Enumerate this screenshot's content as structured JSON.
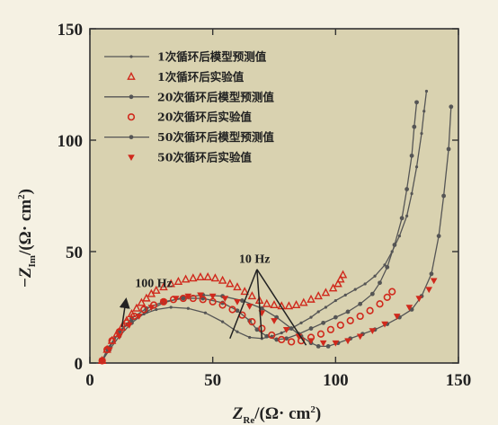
{
  "chart_data": {
    "type": "scatter",
    "xlabel": "Z_Re/(Ω· cm²)",
    "ylabel": "−Z_Im/(Ω· cm²)",
    "xlim": [
      0,
      150
    ],
    "ylim": [
      0,
      150
    ],
    "xticks": [
      0,
      50,
      100,
      150
    ],
    "yticks": [
      0,
      50,
      100,
      150
    ],
    "legend_position": "top-left",
    "colors": {
      "background": "#f5f1e3",
      "plot_area": "#d9d2b0",
      "model_line": "#555555",
      "experimental": "#d0291c"
    },
    "annotations": [
      {
        "text": "100 Hz"
      },
      {
        "text": "10 Hz"
      }
    ],
    "series": [
      {
        "name": "1次循环后模型预测值",
        "kind": "model",
        "marker": "dot-small",
        "x": [
          5,
          7,
          10,
          13,
          17,
          22,
          27,
          33,
          40,
          47,
          54,
          60,
          65,
          70,
          74,
          78,
          82,
          86,
          90,
          93,
          96,
          100,
          104,
          108,
          112,
          116,
          120,
          123,
          126,
          129,
          131,
          133,
          135,
          136,
          137
        ],
        "y": [
          1,
          6,
          11,
          15,
          19,
          22,
          24,
          25,
          24.5,
          22.5,
          18.5,
          14,
          11.5,
          11,
          12,
          13.5,
          15.5,
          18,
          20.5,
          23,
          25,
          28,
          30.5,
          33,
          35.5,
          39,
          44,
          50,
          57,
          66,
          76,
          88,
          103,
          113,
          122
        ]
      },
      {
        "name": "1次循环后实验值",
        "kind": "experimental",
        "marker": "triangle-up",
        "x": [
          5,
          7,
          9,
          11,
          13,
          15,
          17,
          19,
          21,
          23,
          25,
          27,
          30,
          33,
          36,
          39,
          42,
          45,
          48,
          51,
          54,
          57,
          60,
          63,
          66,
          69,
          72,
          75,
          78,
          81,
          84,
          87,
          90,
          93,
          96,
          99,
          101,
          102,
          103
        ],
        "y": [
          1,
          6,
          10,
          13,
          16,
          19,
          22,
          24.5,
          27,
          29,
          31,
          32.5,
          34,
          35.5,
          36.5,
          37.5,
          38,
          38.5,
          38.5,
          38,
          37,
          35.5,
          34,
          32,
          30,
          28,
          26.5,
          26,
          25.5,
          25.5,
          26,
          27,
          28.5,
          30,
          31.5,
          33.5,
          35.5,
          37.5,
          39.5
        ]
      },
      {
        "name": "20次循环后模型预测值",
        "kind": "model",
        "marker": "dot",
        "x": [
          5,
          8,
          12,
          17,
          23,
          30,
          38,
          46,
          54,
          60,
          65,
          68,
          72,
          76,
          80,
          85,
          90,
          95,
          100,
          105,
          110,
          115,
          118,
          121,
          124,
          127,
          129,
          131,
          132,
          133
        ],
        "y": [
          1,
          7,
          14,
          20,
          24.5,
          27.5,
          29,
          29,
          27,
          23.5,
          19,
          15,
          12,
          10.5,
          11,
          13,
          15.5,
          18,
          20.5,
          23,
          26.5,
          31,
          36,
          43,
          53,
          65,
          78,
          93,
          106,
          117
        ]
      },
      {
        "name": "20次循环后实验值",
        "kind": "experimental",
        "marker": "circle-open",
        "x": [
          5,
          7,
          9,
          12,
          15,
          18,
          22,
          26,
          30,
          34,
          38,
          42,
          46,
          50,
          54,
          58,
          62,
          66,
          70,
          74,
          78,
          82,
          86,
          90,
          94,
          98,
          102,
          106,
          110,
          114,
          118,
          121,
          123
        ],
        "y": [
          1,
          6,
          10,
          14,
          18,
          21,
          24,
          26,
          27.5,
          28.5,
          29,
          29,
          28.5,
          27.5,
          26,
          24,
          21.5,
          18.5,
          15.5,
          12.5,
          10.5,
          9.5,
          10,
          11.5,
          13,
          15,
          17,
          19,
          21,
          23.5,
          26.5,
          29.5,
          32
        ]
      },
      {
        "name": "50次循环后模型预测值",
        "kind": "model",
        "marker": "dot",
        "x": [
          5,
          8,
          12,
          17,
          23,
          30,
          38,
          46,
          54,
          62,
          70,
          76,
          82,
          86,
          90,
          93,
          97,
          101,
          106,
          111,
          116,
          121,
          126,
          131,
          135,
          139,
          142,
          144,
          146,
          147
        ],
        "y": [
          1,
          6,
          12,
          18,
          23,
          27,
          29.5,
          30.5,
          30,
          28,
          24.5,
          20.5,
          15.5,
          12,
          9,
          7.5,
          7.5,
          9,
          11,
          13,
          15,
          17.5,
          20.5,
          24,
          30,
          40,
          57,
          75,
          96,
          115
        ]
      },
      {
        "name": "50次循环后实验值",
        "kind": "experimental",
        "marker": "triangle-down",
        "x": [
          5,
          8,
          12,
          16,
          20,
          25,
          30,
          35,
          40,
          45,
          50,
          55,
          60,
          65,
          70,
          75,
          80,
          85,
          90,
          95,
          100,
          105,
          110,
          115,
          120,
          125,
          130,
          134,
          138,
          140
        ],
        "y": [
          1,
          6,
          12,
          17,
          21,
          25,
          27.5,
          29,
          30,
          30.5,
          30,
          29,
          27.5,
          25.5,
          22.5,
          19,
          15,
          12,
          10,
          9,
          9,
          10,
          12,
          14.5,
          17.5,
          21,
          25,
          29,
          33,
          37
        ]
      }
    ]
  }
}
